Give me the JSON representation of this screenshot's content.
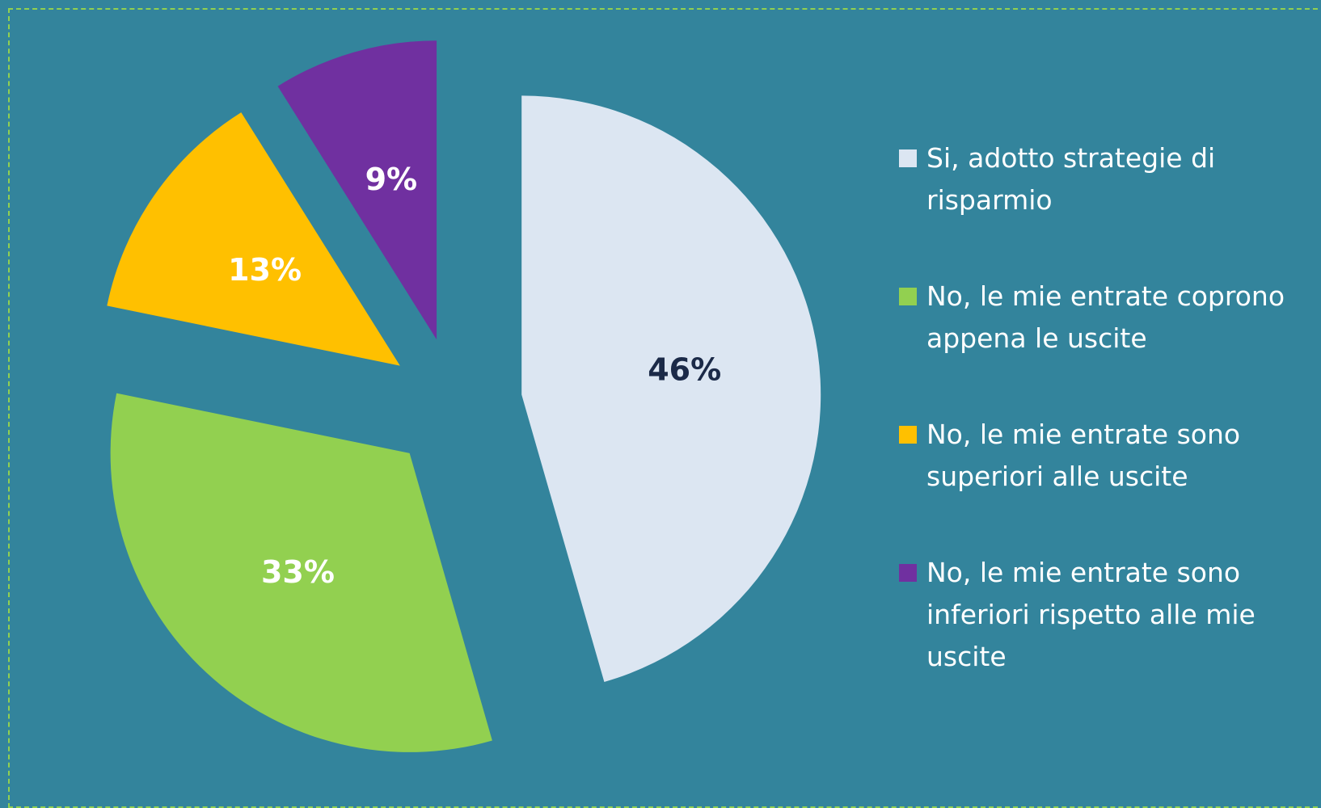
{
  "chart_data": {
    "type": "pie",
    "categories": [
      "Si, adotto strategie di risparmio",
      "No, le mie entrate coprono appena le uscite",
      "No, le mie entrate sono superiori alle uscite",
      "No, le mie entrate sono inferiori rispetto alle mie uscite"
    ],
    "values": [
      46,
      33,
      13,
      9
    ],
    "value_labels": [
      "46%",
      "33%",
      "13%",
      "9%"
    ],
    "colors": [
      "#dce6f2",
      "#92d050",
      "#ffc000",
      "#7030a0"
    ],
    "legend": "right"
  }
}
